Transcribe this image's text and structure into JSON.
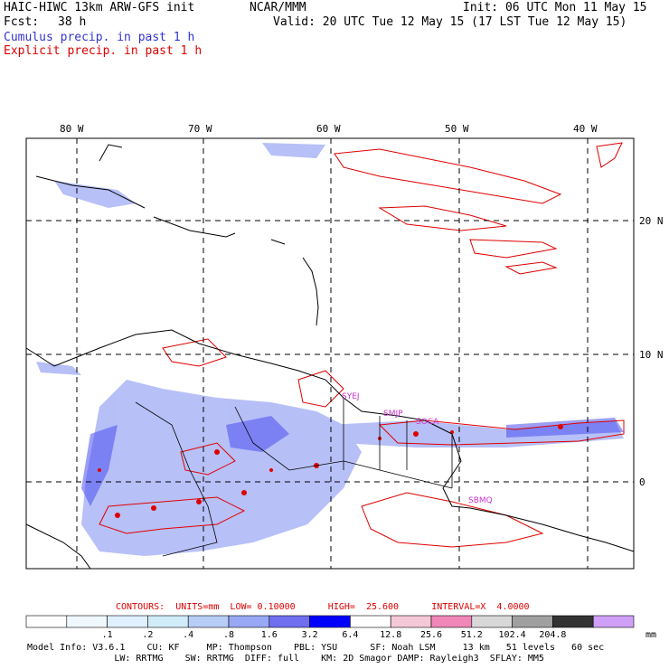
{
  "header": {
    "model": "HAIC-HIWC 13km ARW-GFS init",
    "org": "NCAR/MMM",
    "init": "Init: 06 UTC Mon 11 May 15",
    "fcst_label": "Fcst:",
    "fcst_value": "38 h",
    "valid": "Valid: 20 UTC Tue 12 May 15 (17 LST Tue 12 May 15)",
    "line_cumulus": "Cumulus precip. in past 1 h",
    "line_explicit": "Explicit precip. in past 1 h"
  },
  "map": {
    "lon_labels": [
      "80 W",
      "70 W",
      "60 W",
      "50 W",
      "40 W"
    ],
    "lat_labels": [
      "20 N",
      "10 N",
      "0"
    ],
    "stations": [
      "SYEJ",
      "SMJP",
      "SOCA",
      "SBMQ"
    ],
    "colors": {
      "cumulus": "#7b8cf0",
      "explicit": "#e00000",
      "station": "#cc33cc"
    }
  },
  "contours": {
    "text": "CONTOURS:  UNITS=mm  LOW= 0.10000      HIGH=  25.600      INTERVAL=X  4.0000"
  },
  "colorbar": {
    "colors": [
      "#ffffff",
      "#f0f8ff",
      "#e0f0ff",
      "#d0ecf8",
      "#b8cdf5",
      "#98a8f5",
      "#6f6ff0",
      "#0000ff",
      "#ffffff",
      "#f5c8d8",
      "#f087b8",
      "#d8d8d8",
      "#a0a0a0",
      "#333333",
      "#d0a0f8"
    ],
    "labels": [
      ".1",
      ".2",
      ".4",
      ".8",
      "1.6",
      "3.2",
      "6.4",
      "12.8",
      "25.6",
      "51.2",
      "102.4",
      "204.8"
    ],
    "units": "mm"
  },
  "info": {
    "line1": "Model Info: V3.6.1    CU: KF     MP: Thompson    PBL: YSU      SF: Noah LSM     13 km   51 levels   60 sec",
    "line2": "                LW: RRTMG    SW: RRTMG  DIFF: full    KM: 2D Smagor DAMP: Rayleigh3  SFLAY: MM5"
  }
}
